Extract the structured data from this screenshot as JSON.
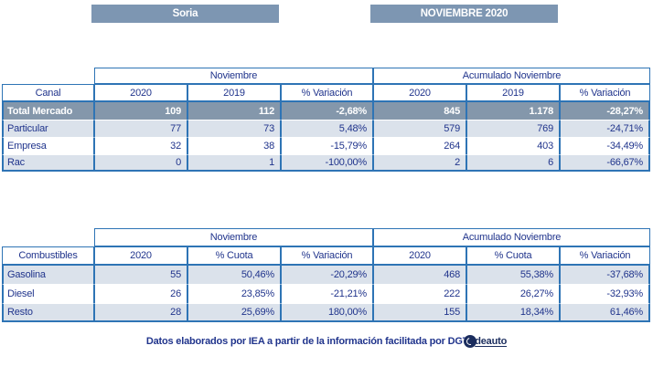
{
  "page": {
    "region_label": "Soria",
    "period_label": "NOVIEMBRE 2020",
    "footer_text": "Datos elaborados por IEA a partir de la información facilitada por DGT",
    "logo_text": "deauto"
  },
  "colors": {
    "bar_bg": "#7D96B2",
    "total_row_bg": "#8497AB",
    "alt_row_bg": "#DBE2EB",
    "border_blue": "#2E74B5",
    "text_navy": "#20348C",
    "logo_navy": "#1B2D5E"
  },
  "chart_data": [
    {
      "type": "table",
      "title": "Canal",
      "column_groups": [
        "Noviembre",
        "Acumulado Noviembre"
      ],
      "columns": [
        "2020",
        "2019",
        "% Variación",
        "2020",
        "2019",
        "% Variación"
      ],
      "rows": [
        {
          "label": "Total Mercado",
          "values": [
            "109",
            "112",
            "-2,68%",
            "845",
            "1.178",
            "-28,27%"
          ]
        },
        {
          "label": "Particular",
          "values": [
            "77",
            "73",
            "5,48%",
            "579",
            "769",
            "-24,71%"
          ]
        },
        {
          "label": "Empresa",
          "values": [
            "32",
            "38",
            "-15,79%",
            "264",
            "403",
            "-34,49%"
          ]
        },
        {
          "label": "Rac",
          "values": [
            "0",
            "1",
            "-100,00%",
            "2",
            "6",
            "-66,67%"
          ]
        }
      ]
    },
    {
      "type": "table",
      "title": "Combustibles",
      "column_groups": [
        "Noviembre",
        "Acumulado Noviembre"
      ],
      "columns": [
        "2020",
        "% Cuota",
        "% Variación",
        "2020",
        "% Cuota",
        "% Variación"
      ],
      "rows": [
        {
          "label": "Gasolina",
          "values": [
            "55",
            "50,46%",
            "-20,29%",
            "468",
            "55,38%",
            "-37,68%"
          ]
        },
        {
          "label": "Diesel",
          "values": [
            "26",
            "23,85%",
            "-21,21%",
            "222",
            "26,27%",
            "-32,93%"
          ]
        },
        {
          "label": "Resto",
          "values": [
            "28",
            "25,69%",
            "180,00%",
            "155",
            "18,34%",
            "61,46%"
          ]
        }
      ]
    }
  ],
  "tables": [
    {
      "row_header": "Canal",
      "groups": [
        "Noviembre",
        "Acumulado Noviembre"
      ],
      "columns": [
        "2020",
        "2019",
        "% Variación",
        "2020",
        "2019",
        "% Variación"
      ],
      "rows": [
        {
          "label": "Total Mercado",
          "values": [
            "109",
            "112",
            "-2,68%",
            "845",
            "1.178",
            "-28,27%"
          ]
        },
        {
          "label": "Particular",
          "values": [
            "77",
            "73",
            "5,48%",
            "579",
            "769",
            "-24,71%"
          ]
        },
        {
          "label": "Empresa",
          "values": [
            "32",
            "38",
            "-15,79%",
            "264",
            "403",
            "-34,49%"
          ]
        },
        {
          "label": "Rac",
          "values": [
            "0",
            "1",
            "-100,00%",
            "2",
            "6",
            "-66,67%"
          ]
        }
      ]
    },
    {
      "row_header": "Combustibles",
      "groups": [
        "Noviembre",
        "Acumulado Noviembre"
      ],
      "columns": [
        "2020",
        "% Cuota",
        "% Variación",
        "2020",
        "% Cuota",
        "% Variación"
      ],
      "rows": [
        {
          "label": "Gasolina",
          "values": [
            "55",
            "50,46%",
            "-20,29%",
            "468",
            "55,38%",
            "-37,68%"
          ]
        },
        {
          "label": "Diesel",
          "values": [
            "26",
            "23,85%",
            "-21,21%",
            "222",
            "26,27%",
            "-32,93%"
          ]
        },
        {
          "label": "Resto",
          "values": [
            "28",
            "25,69%",
            "180,00%",
            "155",
            "18,34%",
            "61,46%"
          ]
        }
      ]
    }
  ]
}
